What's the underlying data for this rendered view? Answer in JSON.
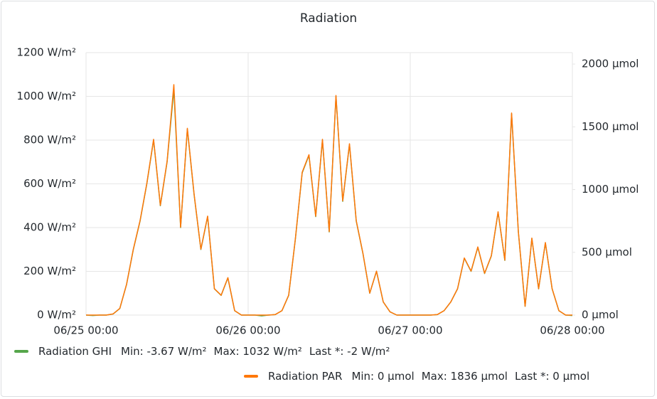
{
  "chart_data": {
    "type": "line",
    "title": "Radiation",
    "x": [
      "06/25 00:00",
      "06/25 01:00",
      "06/25 02:00",
      "06/25 03:00",
      "06/25 04:00",
      "06/25 05:00",
      "06/25 06:00",
      "06/25 07:00",
      "06/25 08:00",
      "06/25 09:00",
      "06/25 10:00",
      "06/25 11:00",
      "06/25 12:00",
      "06/25 13:00",
      "06/25 14:00",
      "06/25 15:00",
      "06/25 16:00",
      "06/25 17:00",
      "06/25 18:00",
      "06/25 19:00",
      "06/25 20:00",
      "06/25 21:00",
      "06/25 22:00",
      "06/25 23:00",
      "06/26 00:00",
      "06/26 01:00",
      "06/26 02:00",
      "06/26 03:00",
      "06/26 04:00",
      "06/26 05:00",
      "06/26 06:00",
      "06/26 07:00",
      "06/26 08:00",
      "06/26 09:00",
      "06/26 10:00",
      "06/26 11:00",
      "06/26 12:00",
      "06/26 13:00",
      "06/26 14:00",
      "06/26 15:00",
      "06/26 16:00",
      "06/26 17:00",
      "06/26 18:00",
      "06/26 19:00",
      "06/26 20:00",
      "06/26 21:00",
      "06/26 22:00",
      "06/26 23:00",
      "06/27 00:00",
      "06/27 01:00",
      "06/27 02:00",
      "06/27 03:00",
      "06/27 04:00",
      "06/27 05:00",
      "06/27 06:00",
      "06/27 07:00",
      "06/27 08:00",
      "06/27 09:00",
      "06/27 10:00",
      "06/27 11:00",
      "06/27 12:00",
      "06/27 13:00",
      "06/27 14:00",
      "06/27 15:00",
      "06/27 16:00",
      "06/27 17:00",
      "06/27 18:00",
      "06/27 19:00",
      "06/27 20:00",
      "06/27 21:00",
      "06/27 22:00",
      "06/27 23:00",
      "06/28 00:00"
    ],
    "series": [
      {
        "name": "Radiation GHI",
        "color": "#56a64b",
        "axis": "y",
        "values": [
          0,
          -2,
          0,
          0,
          5,
          30,
          140,
          300,
          430,
          600,
          800,
          500,
          700,
          1032,
          400,
          850,
          550,
          300,
          450,
          120,
          90,
          170,
          20,
          0,
          0,
          0,
          -3.67,
          0,
          2,
          20,
          90,
          350,
          650,
          730,
          450,
          800,
          380,
          1000,
          520,
          780,
          430,
          280,
          100,
          200,
          60,
          15,
          0,
          0,
          0,
          0,
          0,
          0,
          2,
          20,
          60,
          120,
          260,
          200,
          310,
          190,
          270,
          470,
          250,
          920,
          380,
          40,
          350,
          120,
          330,
          120,
          20,
          0,
          -2
        ],
        "stats": [
          "Min: -3.67 W/m²",
          "Max: 1032 W/m²",
          "Last *: -2 W/m²"
        ]
      },
      {
        "name": "Radiation PAR",
        "color": "#ff780a",
        "axis": "y2",
        "values": [
          0,
          0,
          0,
          0,
          9,
          53,
          245,
          525,
          753,
          1050,
          1400,
          875,
          1225,
          1836,
          700,
          1488,
          963,
          525,
          788,
          210,
          158,
          298,
          35,
          0,
          0,
          0,
          0,
          0,
          4,
          35,
          158,
          613,
          1138,
          1278,
          788,
          1400,
          665,
          1750,
          910,
          1365,
          753,
          490,
          175,
          350,
          105,
          26,
          0,
          0,
          0,
          0,
          0,
          0,
          4,
          35,
          105,
          210,
          455,
          350,
          543,
          333,
          473,
          823,
          438,
          1610,
          665,
          70,
          613,
          210,
          578,
          210,
          35,
          0,
          0
        ],
        "stats": [
          "Min: 0 μmol",
          "Max: 1836 μmol",
          "Last *: 0 μmol"
        ]
      }
    ],
    "xlim": [
      "06/25 00:00",
      "06/28 00:00"
    ],
    "xticks": [
      "06/25 00:00",
      "06/26 00:00",
      "06/27 00:00",
      "06/28 00:00"
    ],
    "ylim": [
      0,
      1200
    ],
    "yticks": [
      {
        "value": 0,
        "label": "0 W/m²"
      },
      {
        "value": 200,
        "label": "200 W/m²"
      },
      {
        "value": 400,
        "label": "400 W/m²"
      },
      {
        "value": 600,
        "label": "600 W/m²"
      },
      {
        "value": 800,
        "label": "800 W/m²"
      },
      {
        "value": 1000,
        "label": "1000 W/m²"
      },
      {
        "value": 1200,
        "label": "1200 W/m²"
      }
    ],
    "y2lim": [
      0,
      2091
    ],
    "y2ticks": [
      {
        "value": 0,
        "label": "0 μmol"
      },
      {
        "value": 500,
        "label": "500 μmol"
      },
      {
        "value": 1000,
        "label": "1000 μmol"
      },
      {
        "value": 1500,
        "label": "1500 μmol"
      },
      {
        "value": 2000,
        "label": "2000 μmol"
      }
    ],
    "grid": true
  }
}
